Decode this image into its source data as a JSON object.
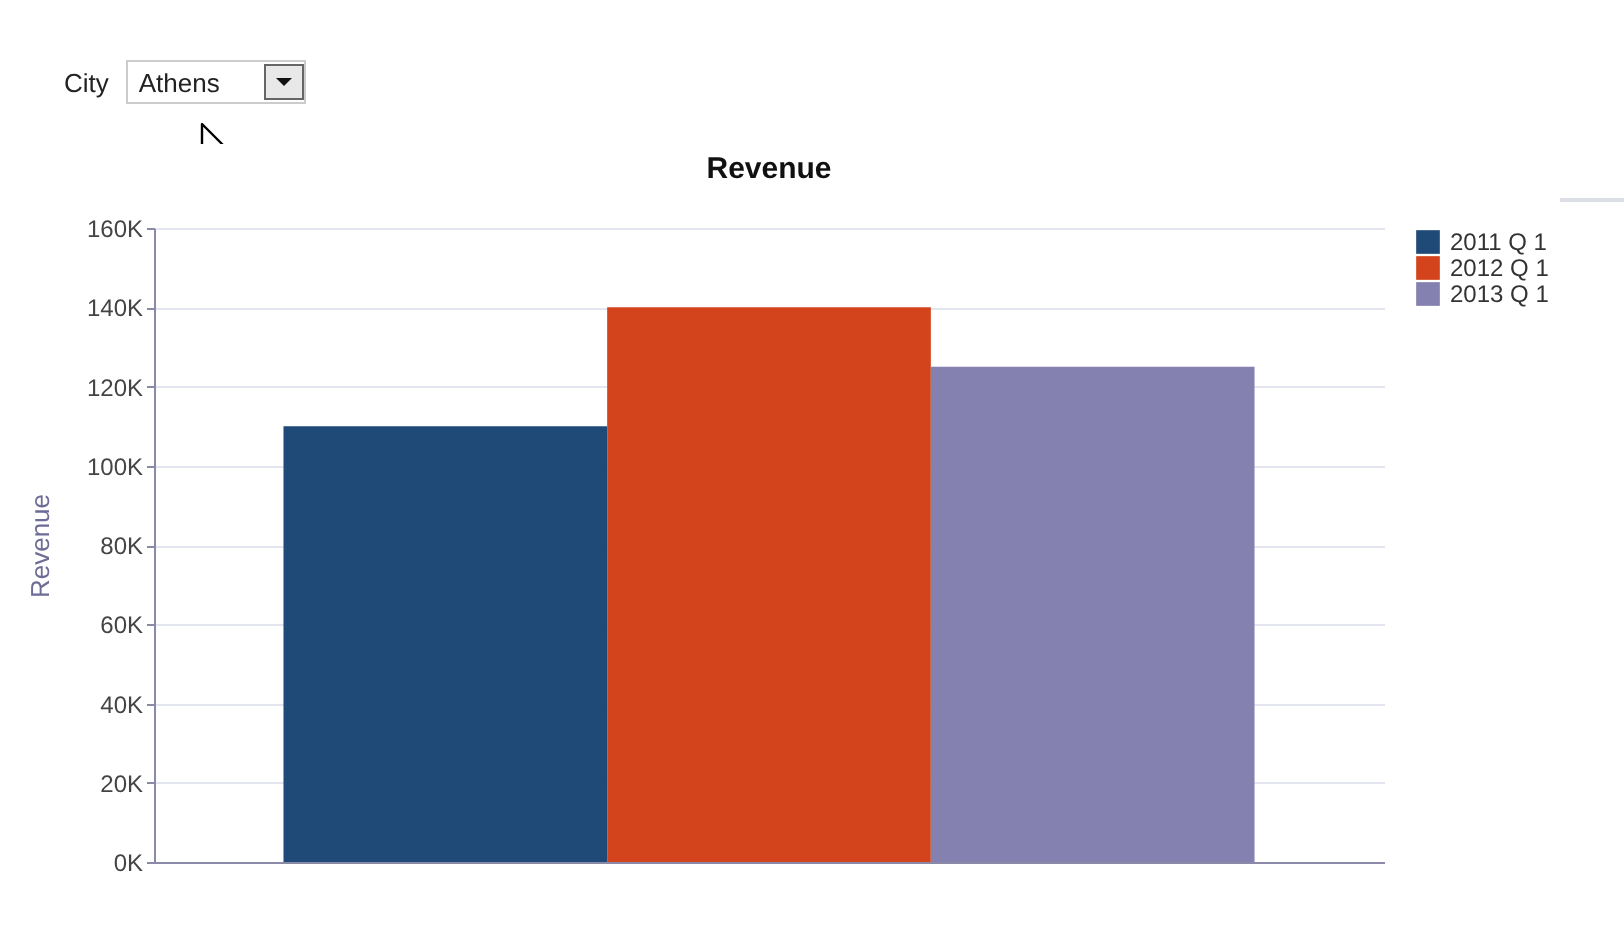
{
  "chart_data": {
    "type": "bar",
    "title": "Revenue",
    "ylabel": "Revenue",
    "annotations": [
      "City",
      "Athens"
    ],
    "categories": [
      null
    ],
    "series": [
      {
        "name": "2011 Q 1",
        "color": "#1f4a78",
        "values": [
          110000
        ]
      },
      {
        "name": "2012 Q 1",
        "color": "#d4441c",
        "values": [
          140000
        ]
      },
      {
        "name": "2013 Q 1",
        "color": "#8480b0",
        "values": [
          125000
        ]
      }
    ],
    "ylim": [
      0,
      160000
    ],
    "yticks": [
      {
        "value": 0,
        "label": "0K"
      },
      {
        "value": 20000,
        "label": "20K"
      },
      {
        "value": 40000,
        "label": "40K"
      },
      {
        "value": 60000,
        "label": "60K"
      },
      {
        "value": 80000,
        "label": "80K"
      },
      {
        "value": 100000,
        "label": "100K"
      },
      {
        "value": 120000,
        "label": "120K"
      },
      {
        "value": 140000,
        "label": "140K"
      },
      {
        "value": 160000,
        "label": "160K"
      }
    ],
    "grid": "y",
    "legend": "right"
  }
}
